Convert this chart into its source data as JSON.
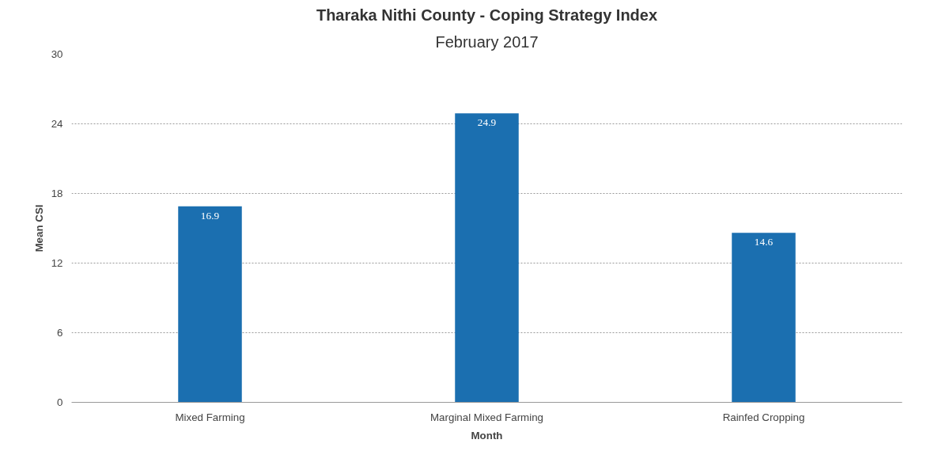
{
  "chart_data": {
    "type": "bar",
    "title": "Tharaka Nithi County - Coping Strategy Index",
    "subtitle": "February 2017",
    "xlabel": "Month",
    "ylabel": "Mean CSI",
    "categories": [
      "Mixed Farming",
      "Marginal Mixed Farming",
      "Rainfed Cropping"
    ],
    "values": [
      16.9,
      24.9,
      14.6
    ],
    "color": "#1b6fb0",
    "ylim": [
      0,
      30
    ],
    "yticks": [
      0,
      6,
      12,
      18,
      24,
      30
    ],
    "grid": "y",
    "data_labels": true
  }
}
